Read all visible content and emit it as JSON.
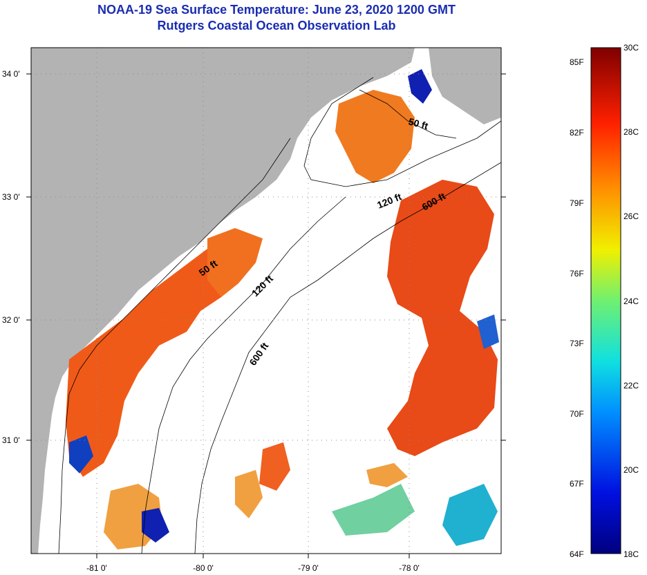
{
  "title_line1": "NOAA-19 Sea Surface Temperature:  June 23, 2020 1200 GMT",
  "title_line2": "Rutgers Coastal Ocean Observation Lab",
  "lat_labels": [
    {
      "value": 34,
      "label": "34 0'"
    },
    {
      "value": 33,
      "label": "33 0'"
    },
    {
      "value": 32,
      "label": "32 0'"
    },
    {
      "value": 31,
      "label": "31 0'"
    }
  ],
  "lon_labels": [
    {
      "value": -81,
      "label": "-81 0'"
    },
    {
      "value": -80,
      "label": "-80 0'"
    },
    {
      "value": -79,
      "label": "-79 0'"
    },
    {
      "value": -78,
      "label": "-78 0'"
    }
  ],
  "contour_labels": [
    "50 ft",
    "120 ft",
    "600 ft",
    "50 ft",
    "120 ft",
    "600 ft"
  ],
  "colorbar": {
    "fahrenheit": [
      "85F",
      "82F",
      "79F",
      "76F",
      "73F",
      "70F",
      "67F",
      "64F"
    ],
    "celsius": [
      "30C",
      "28C",
      "26C",
      "24C",
      "22C",
      "20C",
      "18C"
    ],
    "range_c": [
      18,
      30
    ]
  },
  "colors": {
    "land": "#b3b3b3",
    "title": "#1a2db0",
    "warm": "#f06a10",
    "hot": "#e83010",
    "cool": "#20b0d0",
    "cold": "#1020b0"
  }
}
